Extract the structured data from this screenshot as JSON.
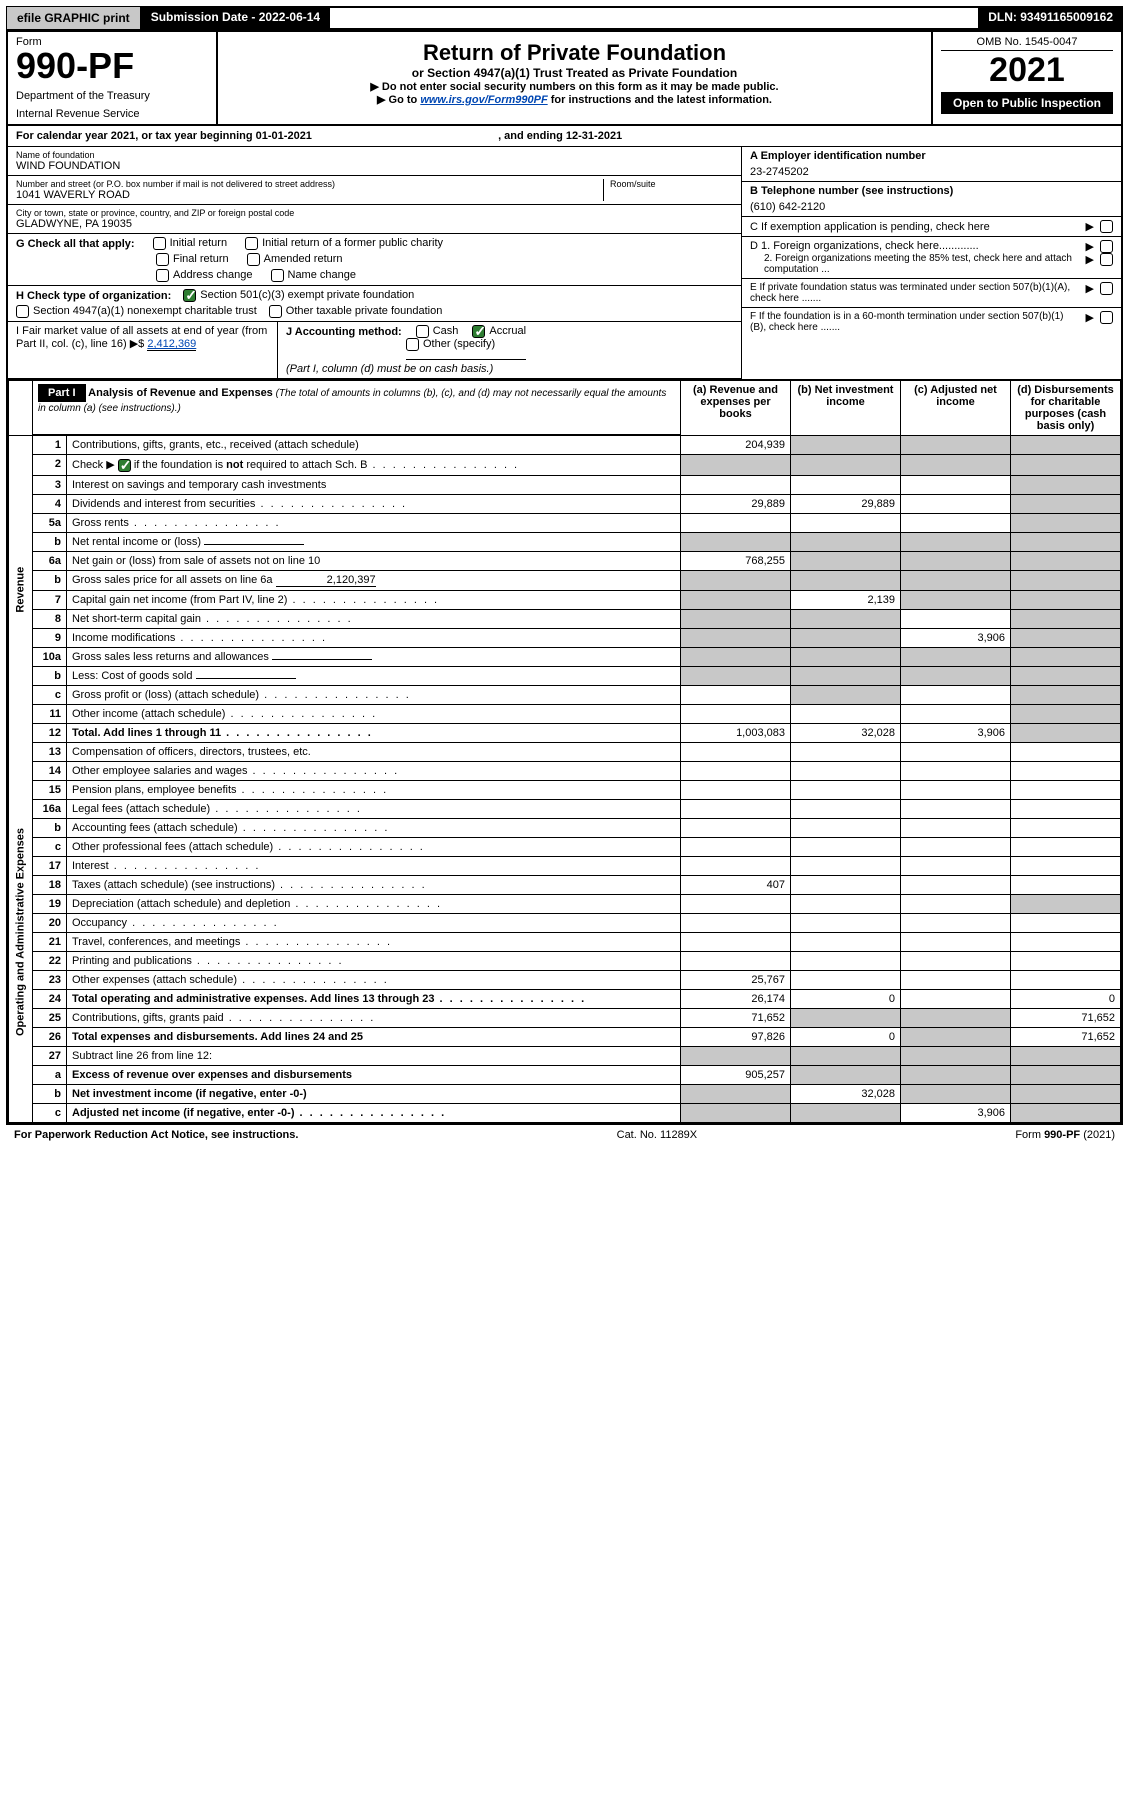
{
  "topbar": {
    "efile": "efile GRAPHIC print",
    "subdate_label": "Submission Date - ",
    "subdate": "2022-06-14",
    "dln_label": "DLN: ",
    "dln": "93491165009162"
  },
  "header": {
    "form_word": "Form",
    "form_number": "990-PF",
    "dept1": "Department of the Treasury",
    "dept2": "Internal Revenue Service",
    "title": "Return of Private Foundation",
    "sub1": "or Section 4947(a)(1) Trust Treated as Private Foundation",
    "sub2": "▶ Do not enter social security numbers on this form as it may be made public.",
    "sub3_a": "▶ Go to ",
    "sub3_link": "www.irs.gov/Form990PF",
    "sub3_b": " for instructions and the latest information.",
    "omb": "OMB No. 1545-0047",
    "year": "2021",
    "open_public": "Open to Public Inspection"
  },
  "calyear": {
    "text_a": "For calendar year 2021, or tax year beginning ",
    "begin": "01-01-2021",
    "text_b": " , and ending ",
    "end": "12-31-2021"
  },
  "foundation": {
    "name_lbl": "Name of foundation",
    "name": "WIND FOUNDATION",
    "addr_lbl": "Number and street (or P.O. box number if mail is not delivered to street address)",
    "addr": "1041 WAVERLY ROAD",
    "room_lbl": "Room/suite",
    "city_lbl": "City or town, state or province, country, and ZIP or foreign postal code",
    "city": "GLADWYNE, PA  19035"
  },
  "right_info": {
    "A_lbl": "A Employer identification number",
    "A": "23-2745202",
    "B_lbl": "B Telephone number (see instructions)",
    "B": "(610) 642-2120",
    "C": "C If exemption application is pending, check here",
    "D1": "D 1. Foreign organizations, check here.............",
    "D2": "2. Foreign organizations meeting the 85% test, check here and attach computation ...",
    "E": "E If private foundation status was terminated under section 507(b)(1)(A), check here .......",
    "F": "F If the foundation is in a 60-month termination under section 507(b)(1)(B), check here ......."
  },
  "G": {
    "label": "G Check all that apply:",
    "initial": "Initial return",
    "initial_pc": "Initial return of a former public charity",
    "final": "Final return",
    "amended": "Amended return",
    "addr_change": "Address change",
    "name_change": "Name change"
  },
  "H": {
    "label": "H Check type of organization:",
    "c3": "Section 501(c)(3) exempt private foundation",
    "s4947": "Section 4947(a)(1) nonexempt charitable trust",
    "other_tax": "Other taxable private foundation"
  },
  "I": {
    "label": "I Fair market value of all assets at end of year (from Part II, col. (c), line 16)",
    "arrow": "▶$",
    "value": "2,412,369"
  },
  "J": {
    "label": "J Accounting method:",
    "cash": "Cash",
    "accrual": "Accrual",
    "other": "Other (specify)",
    "note": "(Part I, column (d) must be on cash basis.)"
  },
  "part1": {
    "part_label": "Part I",
    "title": "Analysis of Revenue and Expenses",
    "title_note": " (The total of amounts in columns (b), (c), and (d) may not necessarily equal the amounts in column (a) (see instructions).)",
    "col_a": "(a) Revenue and expenses per books",
    "col_b": "(b) Net investment income",
    "col_c": "(c) Adjusted net income",
    "col_d": "(d) Disbursements for charitable purposes (cash basis only)",
    "side_rev": "Revenue",
    "side_exp": "Operating and Administrative Expenses",
    "rows": [
      {
        "n": "1",
        "t": "Contributions, gifts, grants, etc., received (attach schedule)",
        "a": "204,939",
        "b": "",
        "c": "",
        "d": "",
        "shade_b": true,
        "shade_c": true,
        "shade_d": true
      },
      {
        "n": "2",
        "t": "Check ▶ ☑ if the foundation is not required to attach Sch. B",
        "a": "",
        "b": "",
        "c": "",
        "d": "",
        "shade_a": true,
        "shade_b": true,
        "shade_c": true,
        "shade_d": true,
        "checked": true,
        "dots": true
      },
      {
        "n": "3",
        "t": "Interest on savings and temporary cash investments",
        "a": "",
        "b": "",
        "c": "",
        "d": "",
        "shade_d": true
      },
      {
        "n": "4",
        "t": "Dividends and interest from securities",
        "a": "29,889",
        "b": "29,889",
        "c": "",
        "d": "",
        "shade_d": true,
        "dots": true
      },
      {
        "n": "5a",
        "t": "Gross rents",
        "a": "",
        "b": "",
        "c": "",
        "d": "",
        "shade_d": true,
        "dots": true
      },
      {
        "n": "b",
        "t": "Net rental income or (loss)",
        "a": "",
        "b": "",
        "c": "",
        "d": "",
        "shade_a": true,
        "shade_b": true,
        "shade_c": true,
        "shade_d": true,
        "inline": true
      },
      {
        "n": "6a",
        "t": "Net gain or (loss) from sale of assets not on line 10",
        "a": "768,255",
        "b": "",
        "c": "",
        "d": "",
        "shade_b": true,
        "shade_c": true,
        "shade_d": true
      },
      {
        "n": "b",
        "t": "Gross sales price for all assets on line 6a",
        "a": "",
        "b": "",
        "c": "",
        "d": "",
        "shade_a": true,
        "shade_b": true,
        "shade_c": true,
        "shade_d": true,
        "inline": true,
        "inline_val": "2,120,397"
      },
      {
        "n": "7",
        "t": "Capital gain net income (from Part IV, line 2)",
        "a": "",
        "b": "2,139",
        "c": "",
        "d": "",
        "shade_a": true,
        "shade_c": true,
        "shade_d": true,
        "dots": true
      },
      {
        "n": "8",
        "t": "Net short-term capital gain",
        "a": "",
        "b": "",
        "c": "",
        "d": "",
        "shade_a": true,
        "shade_b": true,
        "shade_d": true,
        "dots": true
      },
      {
        "n": "9",
        "t": "Income modifications",
        "a": "",
        "b": "",
        "c": "3,906",
        "d": "",
        "shade_a": true,
        "shade_b": true,
        "shade_d": true,
        "dots": true
      },
      {
        "n": "10a",
        "t": "Gross sales less returns and allowances",
        "a": "",
        "b": "",
        "c": "",
        "d": "",
        "shade_a": true,
        "shade_b": true,
        "shade_c": true,
        "shade_d": true,
        "inline": true
      },
      {
        "n": "b",
        "t": "Less: Cost of goods sold",
        "a": "",
        "b": "",
        "c": "",
        "d": "",
        "shade_a": true,
        "shade_b": true,
        "shade_c": true,
        "shade_d": true,
        "inline": true,
        "dots": true
      },
      {
        "n": "c",
        "t": "Gross profit or (loss) (attach schedule)",
        "a": "",
        "b": "",
        "c": "",
        "d": "",
        "shade_b": true,
        "shade_d": true,
        "dots": true
      },
      {
        "n": "11",
        "t": "Other income (attach schedule)",
        "a": "",
        "b": "",
        "c": "",
        "d": "",
        "shade_d": true,
        "dots": true
      },
      {
        "n": "12",
        "t": "Total. Add lines 1 through 11",
        "a": "1,003,083",
        "b": "32,028",
        "c": "3,906",
        "d": "",
        "bold": true,
        "shade_d": true,
        "dots": true
      },
      {
        "n": "13",
        "t": "Compensation of officers, directors, trustees, etc.",
        "a": "",
        "b": "",
        "c": "",
        "d": ""
      },
      {
        "n": "14",
        "t": "Other employee salaries and wages",
        "a": "",
        "b": "",
        "c": "",
        "d": "",
        "dots": true
      },
      {
        "n": "15",
        "t": "Pension plans, employee benefits",
        "a": "",
        "b": "",
        "c": "",
        "d": "",
        "dots": true
      },
      {
        "n": "16a",
        "t": "Legal fees (attach schedule)",
        "a": "",
        "b": "",
        "c": "",
        "d": "",
        "dots": true
      },
      {
        "n": "b",
        "t": "Accounting fees (attach schedule)",
        "a": "",
        "b": "",
        "c": "",
        "d": "",
        "dots": true
      },
      {
        "n": "c",
        "t": "Other professional fees (attach schedule)",
        "a": "",
        "b": "",
        "c": "",
        "d": "",
        "dots": true
      },
      {
        "n": "17",
        "t": "Interest",
        "a": "",
        "b": "",
        "c": "",
        "d": "",
        "dots": true
      },
      {
        "n": "18",
        "t": "Taxes (attach schedule) (see instructions)",
        "a": "407",
        "b": "",
        "c": "",
        "d": "",
        "dots": true
      },
      {
        "n": "19",
        "t": "Depreciation (attach schedule) and depletion",
        "a": "",
        "b": "",
        "c": "",
        "d": "",
        "shade_d": true,
        "dots": true
      },
      {
        "n": "20",
        "t": "Occupancy",
        "a": "",
        "b": "",
        "c": "",
        "d": "",
        "dots": true
      },
      {
        "n": "21",
        "t": "Travel, conferences, and meetings",
        "a": "",
        "b": "",
        "c": "",
        "d": "",
        "dots": true
      },
      {
        "n": "22",
        "t": "Printing and publications",
        "a": "",
        "b": "",
        "c": "",
        "d": "",
        "dots": true
      },
      {
        "n": "23",
        "t": "Other expenses (attach schedule)",
        "a": "25,767",
        "b": "",
        "c": "",
        "d": "",
        "dots": true
      },
      {
        "n": "24",
        "t": "Total operating and administrative expenses. Add lines 13 through 23",
        "a": "26,174",
        "b": "0",
        "c": "",
        "d": "0",
        "bold": true,
        "dots": true
      },
      {
        "n": "25",
        "t": "Contributions, gifts, grants paid",
        "a": "71,652",
        "b": "",
        "c": "",
        "d": "71,652",
        "shade_b": true,
        "shade_c": true,
        "dots": true
      },
      {
        "n": "26",
        "t": "Total expenses and disbursements. Add lines 24 and 25",
        "a": "97,826",
        "b": "0",
        "c": "",
        "d": "71,652",
        "bold": true,
        "shade_c": true
      },
      {
        "n": "27",
        "t": "Subtract line 26 from line 12:",
        "a": "",
        "b": "",
        "c": "",
        "d": "",
        "shade_a": true,
        "shade_b": true,
        "shade_c": true,
        "shade_d": true
      },
      {
        "n": "a",
        "t": "Excess of revenue over expenses and disbursements",
        "a": "905,257",
        "b": "",
        "c": "",
        "d": "",
        "bold": true,
        "shade_b": true,
        "shade_c": true,
        "shade_d": true
      },
      {
        "n": "b",
        "t": "Net investment income (if negative, enter -0-)",
        "a": "",
        "b": "32,028",
        "c": "",
        "d": "",
        "bold": true,
        "shade_a": true,
        "shade_c": true,
        "shade_d": true
      },
      {
        "n": "c",
        "t": "Adjusted net income (if negative, enter -0-)",
        "a": "",
        "b": "",
        "c": "3,906",
        "d": "",
        "bold": true,
        "shade_a": true,
        "shade_b": true,
        "shade_d": true,
        "dots": true
      }
    ]
  },
  "footer": {
    "left": "For Paperwork Reduction Act Notice, see instructions.",
    "mid": "Cat. No. 11289X",
    "right": "Form 990-PF (2021)"
  },
  "colors": {
    "black": "#000000",
    "grey": "#c8c8c8",
    "link": "#0047b3",
    "green": "#2e7d32"
  }
}
